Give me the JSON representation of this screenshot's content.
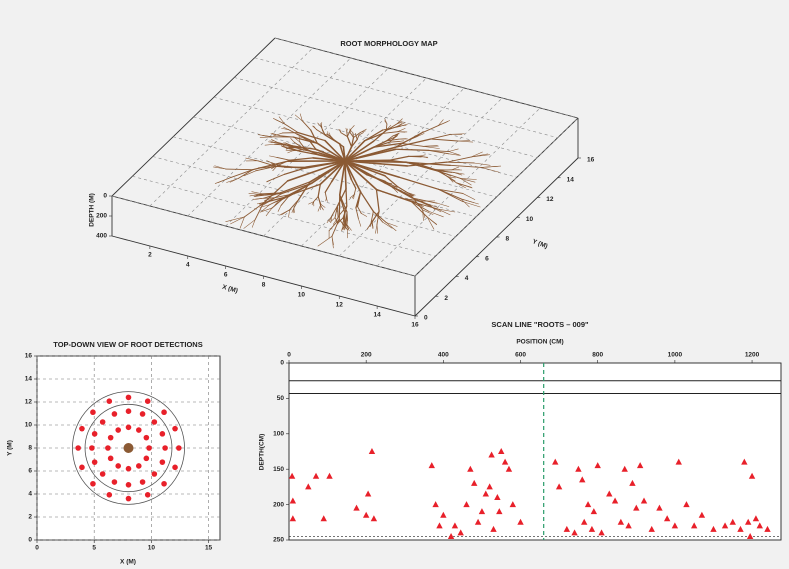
{
  "chart_data": [
    {
      "type": "3d-roots",
      "title": "ROOT MORPHOLOGY MAP",
      "x_label": "X (M)",
      "y_label": "Y (M)",
      "z_label": "DEPTH (M)",
      "xlim": [
        0,
        16
      ],
      "ylim": [
        0,
        16
      ],
      "zlim": [
        0,
        400
      ],
      "xticks": [
        2,
        4,
        6,
        8,
        10,
        12,
        14,
        16
      ],
      "yticks": [
        0,
        2,
        4,
        6,
        8,
        10,
        12,
        14,
        16
      ],
      "zticks": [
        0,
        200,
        400
      ],
      "root_center": {
        "x": 8,
        "y": 8
      },
      "root_color": "#8b5a34",
      "grid": true
    },
    {
      "type": "scatter",
      "marker": "circle",
      "title": "TOP-DOWN VIEW OF ROOT DETECTIONS",
      "x_label": "X (M)",
      "y_label": "Y (M)",
      "xlim": [
        0,
        16
      ],
      "ylim": [
        0,
        16
      ],
      "xticks": [
        0,
        5,
        10,
        15
      ],
      "yticks": [
        0,
        2,
        4,
        6,
        8,
        10,
        12,
        14,
        16
      ],
      "grid": true,
      "center": {
        "x": 8,
        "y": 8,
        "color": "#8b5a34"
      },
      "circles": [
        {
          "x": 8,
          "y": 8,
          "r": 3.8
        },
        {
          "x": 8,
          "y": 8,
          "r": 4.9
        }
      ],
      "series": [
        {
          "color": "#e8202a",
          "x": [
            9.8,
            9.56,
            8.9,
            8.0,
            7.1,
            6.44,
            6.2,
            6.44,
            7.1,
            8.0,
            8.9,
            9.56,
            11.2,
            10.96,
            10.26,
            9.23,
            8.0,
            6.77,
            5.74,
            5.04,
            4.8,
            5.04,
            5.74,
            6.77,
            8.0,
            9.23,
            10.26,
            10.96,
            12.4,
            12.07,
            11.11,
            9.68,
            8.0,
            6.32,
            4.89,
            3.93,
            3.6,
            3.93,
            4.89,
            6.32,
            8.0,
            9.68,
            11.11,
            12.07
          ],
          "values": [
            8.0,
            8.9,
            9.56,
            9.8,
            9.56,
            8.9,
            8.0,
            7.1,
            6.44,
            6.2,
            6.44,
            7.1,
            8.0,
            9.23,
            10.26,
            10.96,
            11.2,
            10.96,
            10.26,
            9.23,
            8.0,
            6.77,
            5.74,
            5.04,
            4.8,
            5.04,
            5.74,
            6.77,
            8.0,
            9.68,
            11.11,
            12.07,
            12.4,
            12.07,
            11.11,
            9.68,
            8.0,
            6.32,
            4.89,
            3.93,
            3.6,
            3.93,
            4.89,
            6.32
          ]
        }
      ]
    },
    {
      "type": "scatter",
      "marker": "triangle",
      "title": "SCAN LINE \"ROOTS – 009\"",
      "x_label": "POSITION (CM)",
      "y_label": "DEPTH(CM)",
      "xlim": [
        0,
        1275
      ],
      "ylim": [
        0,
        250
      ],
      "y_inverted": true,
      "x_axis_top": true,
      "xticks": [
        0,
        200,
        400,
        600,
        800,
        1000,
        1200
      ],
      "yticks": [
        0,
        50,
        100,
        150,
        200,
        250
      ],
      "grid": false,
      "vlines": [
        {
          "x": 660,
          "color": "#2a9d6a"
        }
      ],
      "hlines": [
        {
          "y": 25
        },
        {
          "y": 43
        },
        {
          "y": 245
        }
      ],
      "series": [
        {
          "color": "#e8202a",
          "x": [
            8,
            10,
            10,
            50,
            70,
            90,
            105,
            175,
            200,
            205,
            215,
            220,
            370,
            380,
            390,
            400,
            420,
            430,
            445,
            460,
            470,
            480,
            490,
            500,
            510,
            520,
            525,
            530,
            540,
            545,
            550,
            560,
            570,
            580,
            600,
            690,
            700,
            720,
            740,
            750,
            760,
            765,
            775,
            785,
            790,
            800,
            810,
            830,
            845,
            860,
            870,
            880,
            890,
            900,
            910,
            920,
            940,
            960,
            980,
            1000,
            1010,
            1030,
            1050,
            1070,
            1100,
            1130,
            1150,
            1170,
            1180,
            1190,
            1195,
            1200,
            1210,
            1220,
            1240
          ],
          "values": [
            160,
            195,
            220,
            175,
            160,
            220,
            160,
            205,
            215,
            185,
            125,
            220,
            145,
            200,
            230,
            215,
            245,
            230,
            240,
            200,
            150,
            170,
            225,
            210,
            185,
            175,
            130,
            235,
            190,
            210,
            125,
            140,
            150,
            200,
            225,
            140,
            175,
            235,
            240,
            150,
            165,
            225,
            200,
            235,
            210,
            145,
            240,
            185,
            195,
            225,
            150,
            230,
            170,
            205,
            145,
            195,
            235,
            205,
            220,
            230,
            140,
            200,
            230,
            215,
            235,
            230,
            225,
            235,
            140,
            225,
            245,
            160,
            220,
            230,
            235
          ]
        }
      ]
    }
  ]
}
